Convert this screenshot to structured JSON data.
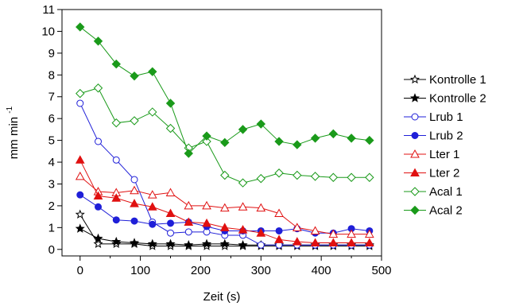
{
  "chart_data": {
    "type": "line",
    "xlabel": "Zeit (s)",
    "ylabel": "mm min",
    "ylabel_superscript": "-1",
    "xlim": [
      -30,
      500
    ],
    "ylim": [
      -0.3,
      11
    ],
    "xticks": [
      0,
      100,
      200,
      300,
      400,
      500
    ],
    "yticks": [
      0,
      1,
      2,
      3,
      4,
      5,
      6,
      7,
      8,
      9,
      10,
      11
    ],
    "grid": false,
    "legend_position": "right",
    "series": [
      {
        "name": "Kontrolle 1",
        "color": "#000000",
        "marker": "star-open",
        "x": [
          0,
          30,
          60,
          90,
          120,
          150,
          180,
          210,
          240,
          270,
          300,
          330,
          360,
          390,
          420,
          450,
          480
        ],
        "y": [
          1.6,
          0.25,
          0.25,
          0.25,
          0.15,
          0.15,
          0.15,
          0.15,
          0.15,
          0.15,
          0.15,
          0.15,
          0.15,
          0.15,
          0.15,
          0.15,
          0.15
        ]
      },
      {
        "name": "Kontrolle 2",
        "color": "#000000",
        "marker": "star-filled",
        "x": [
          0,
          30,
          60,
          90,
          120,
          150,
          180,
          210,
          240,
          270,
          300,
          330,
          360,
          390,
          420,
          450,
          480
        ],
        "y": [
          0.95,
          0.5,
          0.35,
          0.3,
          0.25,
          0.25,
          0.2,
          0.25,
          0.25,
          0.2,
          0.2,
          0.2,
          0.2,
          0.2,
          0.2,
          0.2,
          0.2
        ]
      },
      {
        "name": "Lrub 1",
        "color": "#1f1fd8",
        "marker": "circle-open",
        "x": [
          0,
          30,
          60,
          90,
          120,
          150,
          180,
          210,
          240,
          270,
          300,
          330,
          360,
          390,
          420,
          450,
          480
        ],
        "y": [
          6.7,
          4.95,
          4.1,
          3.2,
          1.25,
          0.75,
          0.8,
          0.8,
          0.65,
          0.65,
          0.2,
          0.2,
          0.2,
          0.2,
          0.2,
          0.2,
          0.2
        ]
      },
      {
        "name": "Lrub 2",
        "color": "#1f1fd8",
        "marker": "circle-filled",
        "x": [
          0,
          30,
          60,
          90,
          120,
          150,
          180,
          210,
          240,
          270,
          300,
          330,
          360,
          390,
          420,
          450,
          480
        ],
        "y": [
          2.5,
          1.95,
          1.35,
          1.3,
          1.15,
          1.2,
          1.25,
          1.05,
          0.85,
          0.85,
          0.85,
          0.85,
          0.95,
          0.75,
          0.75,
          0.95,
          0.85
        ]
      },
      {
        "name": "Lter 1",
        "color": "#e01010",
        "marker": "triangle-open",
        "x": [
          0,
          30,
          60,
          90,
          120,
          150,
          180,
          210,
          240,
          270,
          300,
          330,
          360,
          390,
          420,
          450,
          480
        ],
        "y": [
          3.35,
          2.65,
          2.6,
          2.7,
          2.5,
          2.6,
          2.0,
          2.0,
          1.9,
          1.95,
          1.9,
          1.65,
          1.0,
          0.85,
          0.7,
          0.7,
          0.7
        ]
      },
      {
        "name": "Lter 2",
        "color": "#e01010",
        "marker": "triangle-filled",
        "x": [
          0,
          30,
          60,
          90,
          120,
          150,
          180,
          210,
          240,
          270,
          300,
          330,
          360,
          390,
          420,
          450,
          480
        ],
        "y": [
          4.1,
          2.45,
          2.35,
          2.1,
          1.95,
          1.65,
          1.25,
          1.2,
          1.0,
          0.9,
          0.75,
          0.45,
          0.35,
          0.3,
          0.3,
          0.3,
          0.3
        ]
      },
      {
        "name": "Acal 1",
        "color": "#1a9a1a",
        "marker": "diamond-open",
        "x": [
          0,
          30,
          60,
          90,
          120,
          150,
          180,
          210,
          240,
          270,
          300,
          330,
          360,
          390,
          420,
          450,
          480
        ],
        "y": [
          7.15,
          7.4,
          5.8,
          5.9,
          6.3,
          5.55,
          4.65,
          4.95,
          3.4,
          3.05,
          3.25,
          3.5,
          3.4,
          3.35,
          3.3,
          3.3,
          3.3
        ]
      },
      {
        "name": "Acal 2",
        "color": "#1a9a1a",
        "marker": "diamond-filled",
        "x": [
          0,
          30,
          60,
          90,
          120,
          150,
          180,
          210,
          240,
          270,
          300,
          330,
          360,
          390,
          420,
          450,
          480
        ],
        "y": [
          10.2,
          9.55,
          8.5,
          7.95,
          8.15,
          6.7,
          4.4,
          5.2,
          4.9,
          5.5,
          5.75,
          4.95,
          4.8,
          5.1,
          5.3,
          5.1,
          5.0
        ]
      }
    ]
  }
}
